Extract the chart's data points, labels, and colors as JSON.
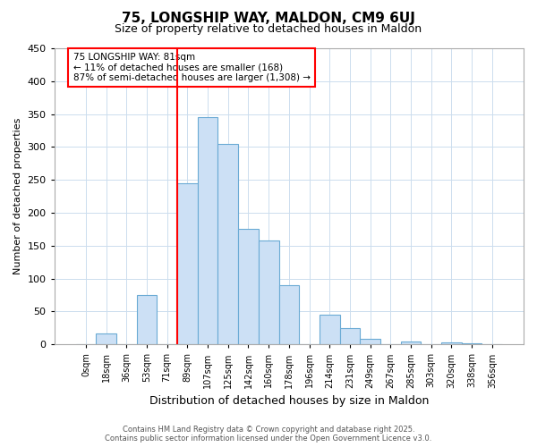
{
  "title": "75, LONGSHIP WAY, MALDON, CM9 6UJ",
  "subtitle": "Size of property relative to detached houses in Maldon",
  "xlabel": "Distribution of detached houses by size in Maldon",
  "ylabel": "Number of detached properties",
  "bar_labels": [
    "0sqm",
    "18sqm",
    "36sqm",
    "53sqm",
    "71sqm",
    "89sqm",
    "107sqm",
    "125sqm",
    "142sqm",
    "160sqm",
    "178sqm",
    "196sqm",
    "214sqm",
    "231sqm",
    "249sqm",
    "267sqm",
    "285sqm",
    "303sqm",
    "320sqm",
    "338sqm",
    "356sqm"
  ],
  "bar_values": [
    0,
    16,
    0,
    75,
    0,
    245,
    345,
    305,
    175,
    158,
    90,
    0,
    45,
    25,
    8,
    0,
    4,
    0,
    3,
    2,
    1
  ],
  "bar_color": "#cce0f5",
  "bar_edge_color": "#6aaad4",
  "ylim": [
    0,
    450
  ],
  "yticks": [
    0,
    50,
    100,
    150,
    200,
    250,
    300,
    350,
    400,
    450
  ],
  "red_line_x": 4.5,
  "annotation_title": "75 LONGSHIP WAY: 81sqm",
  "annotation_line1": "← 11% of detached houses are smaller (168)",
  "annotation_line2": "87% of semi-detached houses are larger (1,308) →",
  "footer_line1": "Contains HM Land Registry data © Crown copyright and database right 2025.",
  "footer_line2": "Contains public sector information licensed under the Open Government Licence v3.0.",
  "background_color": "#ffffff",
  "grid_color": "#ccddee"
}
